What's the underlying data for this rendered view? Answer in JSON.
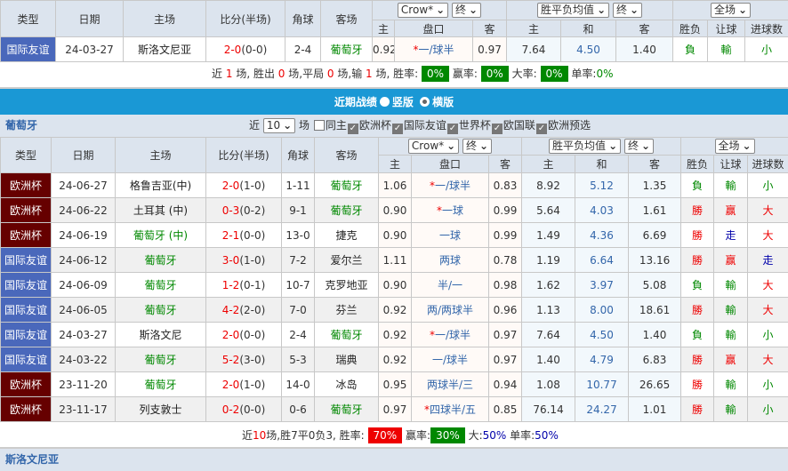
{
  "headers": {
    "type": "类型",
    "date": "日期",
    "home": "主场",
    "score": "比分(半场)",
    "corner": "角球",
    "away": "客场",
    "h": "主",
    "line": "盘口",
    "a": "客",
    "w": "主",
    "d": "和",
    "l": "客",
    "wl": "胜负",
    "hc": "让球",
    "goals": "进球数"
  },
  "selects": {
    "company": "Crow*",
    "stage1": "终",
    "avg": "胜平负均值",
    "stage2": "终",
    "period": "全场",
    "recent": "10"
  },
  "top_match": {
    "type": "国际友谊",
    "date": "24-03-27",
    "home": "斯洛文尼亚",
    "score": "2-0",
    "half": "(0-0)",
    "corner": "2-4",
    "away": "葡萄牙",
    "h": "0.92",
    "star": "*",
    "line": "一/球半",
    "a": "0.97",
    "w": "7.64",
    "d": "4.50",
    "l": "1.40",
    "wl": "負",
    "hc": "輸",
    "goals": "小"
  },
  "top_summary": {
    "t1": "近",
    "n": "1",
    "t2": "场, 胜出",
    "win": "0",
    "t3": "场,平局",
    "draw": "0",
    "t4": "场,输",
    "lose": "1",
    "t5": "场, 胜率:",
    "rate": "0%",
    "t6": "赢率:",
    "win_rate": "0%",
    "t7": "大率:",
    "big_rate": "0%",
    "t8": "单率:",
    "odd_rate": "0%"
  },
  "bar": {
    "title": "近期战绩",
    "opt1": "竖版",
    "opt2": "横版"
  },
  "team": {
    "name": "葡萄牙",
    "recent_prefix": "近",
    "recent_suffix": "场",
    "filters": [
      {
        "label": "同主",
        "checked": false
      },
      {
        "label": "欧洲杯",
        "checked": true
      },
      {
        "label": "国际友谊",
        "checked": true
      },
      {
        "label": "世界杯",
        "checked": true
      },
      {
        "label": "欧国联",
        "checked": true
      },
      {
        "label": "欧洲预选",
        "checked": true
      }
    ]
  },
  "rows": [
    {
      "type": "欧洲杯",
      "tc": "euro",
      "date": "24-06-27",
      "home": "格鲁吉亚(中)",
      "hg": false,
      "score": "2-0",
      "half": "(1-0)",
      "corner": "1-11",
      "away": "葡萄牙",
      "ag": true,
      "h": "1.06",
      "star": "*",
      "line": "一/球半",
      "a": "0.83",
      "w": "8.92",
      "d": "5.12",
      "l": "1.35",
      "wl": "負",
      "hc": "輸",
      "goals": "小"
    },
    {
      "type": "欧洲杯",
      "tc": "euro",
      "date": "24-06-22",
      "home": "土耳其 (中)",
      "hg": false,
      "score": "0-3",
      "half": "(0-2)",
      "corner": "9-1",
      "away": "葡萄牙",
      "ag": true,
      "h": "0.90",
      "star": "*",
      "line": "一球",
      "a": "0.99",
      "w": "5.64",
      "d": "4.03",
      "l": "1.61",
      "wl": "勝",
      "hc": "赢",
      "goals": "大"
    },
    {
      "type": "欧洲杯",
      "tc": "euro",
      "date": "24-06-19",
      "home": "葡萄牙 (中)",
      "hg": true,
      "score": "2-1",
      "half": "(0-0)",
      "corner": "13-0",
      "away": "捷克",
      "ag": false,
      "h": "0.90",
      "star": "",
      "line": "一球",
      "a": "0.99",
      "w": "1.49",
      "d": "4.36",
      "l": "6.69",
      "wl": "勝",
      "hc": "走",
      "goals": "大"
    },
    {
      "type": "国际友谊",
      "tc": "friendly",
      "date": "24-06-12",
      "home": "葡萄牙",
      "hg": true,
      "score": "3-0",
      "half": "(1-0)",
      "corner": "7-2",
      "away": "爱尔兰",
      "ag": false,
      "h": "1.11",
      "star": "",
      "line": "两球",
      "a": "0.78",
      "w": "1.19",
      "d": "6.64",
      "l": "13.16",
      "wl": "勝",
      "hc": "赢",
      "goals": "走"
    },
    {
      "type": "国际友谊",
      "tc": "friendly",
      "date": "24-06-09",
      "home": "葡萄牙",
      "hg": true,
      "score": "1-2",
      "half": "(0-1)",
      "corner": "10-7",
      "away": "克罗地亚",
      "ag": false,
      "h": "0.90",
      "star": "",
      "line": "半/一",
      "a": "0.98",
      "w": "1.62",
      "d": "3.97",
      "l": "5.08",
      "wl": "負",
      "hc": "輸",
      "goals": "大"
    },
    {
      "type": "国际友谊",
      "tc": "friendly",
      "date": "24-06-05",
      "home": "葡萄牙",
      "hg": true,
      "score": "4-2",
      "half": "(2-0)",
      "corner": "7-0",
      "away": "芬兰",
      "ag": false,
      "h": "0.92",
      "star": "",
      "line": "两/两球半",
      "a": "0.96",
      "w": "1.13",
      "d": "8.00",
      "l": "18.61",
      "wl": "勝",
      "hc": "輸",
      "goals": "大"
    },
    {
      "type": "国际友谊",
      "tc": "friendly",
      "date": "24-03-27",
      "home": "斯洛文尼",
      "hg": false,
      "score": "2-0",
      "half": "(0-0)",
      "corner": "2-4",
      "away": "葡萄牙",
      "ag": true,
      "h": "0.92",
      "star": "*",
      "line": "一/球半",
      "a": "0.97",
      "w": "7.64",
      "d": "4.50",
      "l": "1.40",
      "wl": "負",
      "hc": "輸",
      "goals": "小"
    },
    {
      "type": "国际友谊",
      "tc": "friendly",
      "date": "24-03-22",
      "home": "葡萄牙",
      "hg": true,
      "score": "5-2",
      "half": "(3-0)",
      "corner": "5-3",
      "away": "瑞典",
      "ag": false,
      "h": "0.92",
      "star": "",
      "line": "一/球半",
      "a": "0.97",
      "w": "1.40",
      "d": "4.79",
      "l": "6.83",
      "wl": "勝",
      "hc": "赢",
      "goals": "大"
    },
    {
      "type": "欧洲杯",
      "tc": "euro",
      "date": "23-11-20",
      "home": "葡萄牙",
      "hg": true,
      "score": "2-0",
      "half": "(1-0)",
      "corner": "14-0",
      "away": "冰岛",
      "ag": false,
      "h": "0.95",
      "star": "",
      "line": "两球半/三",
      "a": "0.94",
      "w": "1.08",
      "d": "10.77",
      "l": "26.65",
      "wl": "勝",
      "hc": "輸",
      "goals": "小"
    },
    {
      "type": "欧洲杯",
      "tc": "euro",
      "date": "23-11-17",
      "home": "列支敦士",
      "hg": false,
      "score": "0-2",
      "half": "(0-0)",
      "corner": "0-6",
      "away": "葡萄牙",
      "ag": true,
      "h": "0.97",
      "star": "*",
      "line": "四球半/五",
      "a": "0.85",
      "w": "76.14",
      "d": "24.27",
      "l": "1.01",
      "wl": "勝",
      "hc": "輸",
      "goals": "小"
    }
  ],
  "summary": {
    "t1": "近",
    "n": "10",
    "t2": "场,胜7平0负3, 胜率:",
    "rate": "70%",
    "t3": "赢率:",
    "win_rate": "30%",
    "t4": "大:",
    "big_rate": "50%",
    "t5": "单率:",
    "odd_rate": "50%"
  },
  "next_team": {
    "name": "斯洛文尼亚"
  },
  "colors": {
    "euro": "#660000",
    "friendly": "#4a68bb",
    "bar": "#1a98d5",
    "header": "#dce4ee",
    "win": "#e00000",
    "lose": "#008800"
  }
}
